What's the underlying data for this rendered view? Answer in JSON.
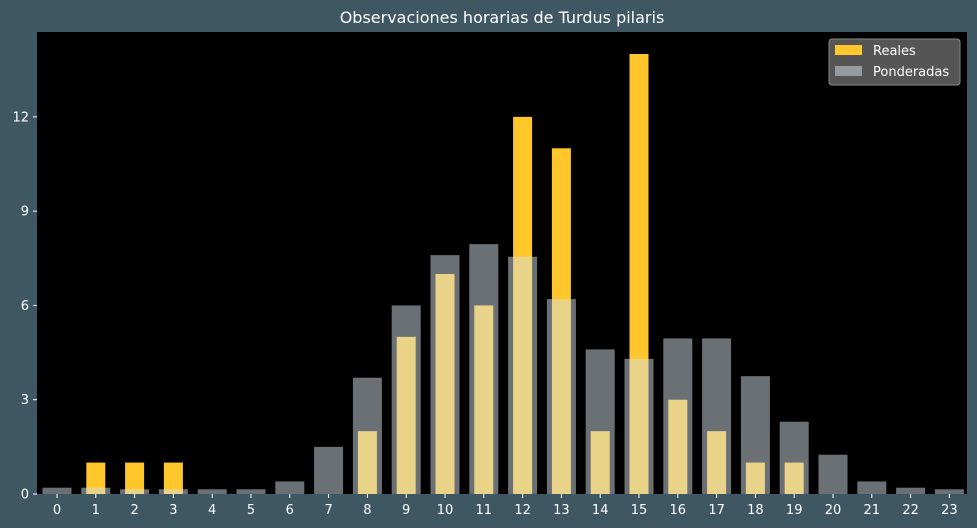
{
  "chart_data": {
    "type": "bar",
    "title": "Observaciones horarias de Turdus pilaris",
    "xlabel": "",
    "ylabel": "",
    "categories": [
      "0",
      "1",
      "2",
      "3",
      "4",
      "5",
      "6",
      "7",
      "8",
      "9",
      "10",
      "11",
      "12",
      "13",
      "14",
      "15",
      "16",
      "17",
      "18",
      "19",
      "20",
      "21",
      "22",
      "23"
    ],
    "series": [
      {
        "name": "Reales",
        "values": [
          0,
          1,
          1,
          1,
          0,
          0,
          0,
          0,
          2,
          5,
          7,
          6,
          12,
          11,
          2,
          14,
          3,
          2,
          1,
          1,
          0,
          0,
          0,
          0
        ],
        "color": "#ffc72c"
      },
      {
        "name": "Ponderadas",
        "values": [
          0.2,
          0.2,
          0.15,
          0.15,
          0.15,
          0.15,
          0.4,
          1.5,
          3.7,
          6.0,
          7.6,
          7.95,
          7.55,
          6.2,
          4.6,
          4.3,
          4.95,
          4.95,
          3.75,
          2.3,
          1.25,
          0.4,
          0.2,
          0.15
        ],
        "color": "#d3e0e6",
        "opacity": 0.5
      }
    ],
    "yticks": [
      "0",
      "3",
      "6",
      "9",
      "12"
    ],
    "ylim": [
      0,
      14.7
    ],
    "grid": false,
    "legend": "top-right",
    "colors": {
      "figure_bg": "#3f5663",
      "axes_bg": "#000000",
      "text": "#ffffff"
    }
  }
}
